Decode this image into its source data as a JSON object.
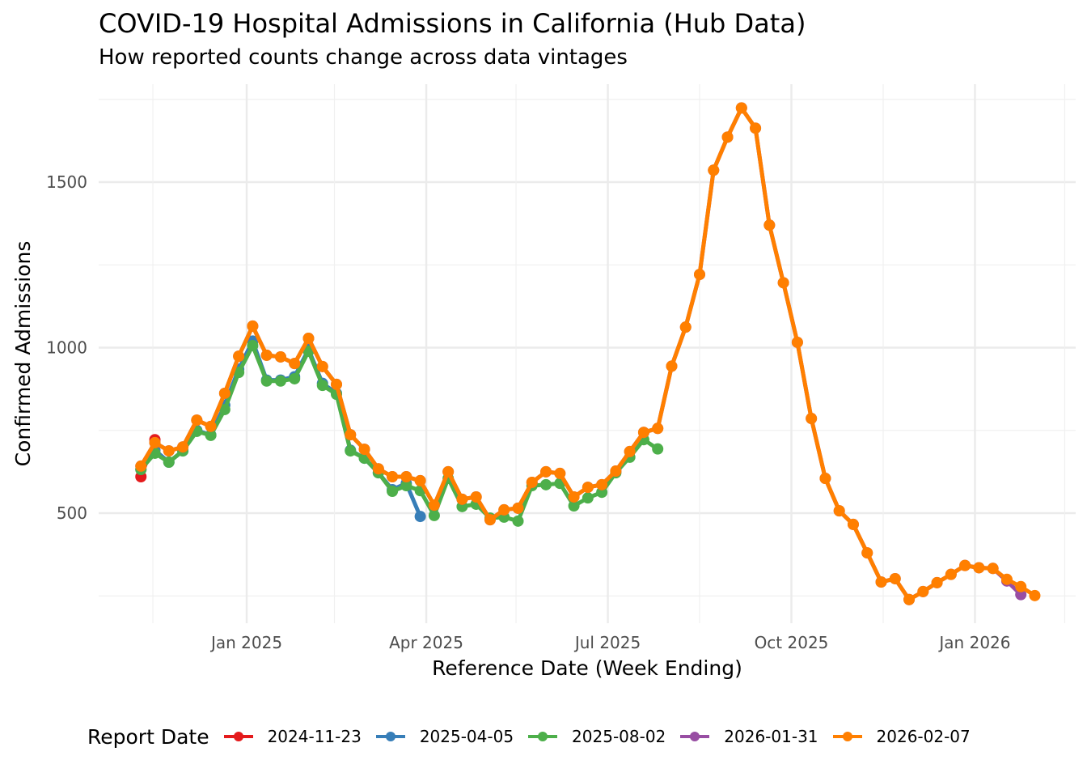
{
  "chart_data": {
    "type": "line",
    "title": "COVID-19 Hospital Admissions in California (Hub Data)",
    "subtitle": "How reported counts change across data vintages",
    "xlabel": "Reference Date (Week Ending)",
    "ylabel": "Confirmed Admissions",
    "x_ticks": [
      "Jan 2025",
      "Apr 2025",
      "Jul 2025",
      "Oct 2025",
      "Jan 2026"
    ],
    "x_tick_dates": [
      "2025-01-01",
      "2025-04-01",
      "2025-07-01",
      "2025-10-01",
      "2026-01-01"
    ],
    "x_minor_dates": [
      "2024-11-15",
      "2025-02-14",
      "2025-05-16",
      "2025-08-16",
      "2025-11-16",
      "2026-02-15"
    ],
    "xlim": [
      "2024-10-28",
      "2026-02-15"
    ],
    "y_ticks": [
      500,
      1000,
      1500
    ],
    "y_minor": [
      250,
      750,
      1250,
      1750
    ],
    "ylim": [
      200,
      1770
    ],
    "grid": true,
    "legend": {
      "title": "Report Date",
      "position": "bottom"
    },
    "series": [
      {
        "name": "2024-11-23",
        "color": "#E41A1C",
        "start": "2024-11-09",
        "values": [
          610,
          722
        ]
      },
      {
        "name": "2025-04-05",
        "color": "#377EB8",
        "start": "2024-11-09",
        "values": [
          632,
          690,
          654,
          688,
          750,
          736,
          826,
          935,
          1020,
          902,
          902,
          912,
          995,
          892,
          862,
          690,
          666,
          622,
          571,
          590,
          490
        ]
      },
      {
        "name": "2025-08-02",
        "color": "#4DAF4A",
        "start": "2024-11-09",
        "values": [
          632,
          681,
          654,
          688,
          747,
          735,
          813,
          925,
          1006,
          899,
          899,
          906,
          989,
          886,
          859,
          688,
          666,
          622,
          566,
          583,
          568,
          493,
          605,
          520,
          527,
          485,
          488,
          476,
          583,
          586,
          590,
          522,
          546,
          563,
          622,
          669,
          722,
          694
        ]
      },
      {
        "name": "2026-01-31",
        "color": "#984EA3",
        "start": "2024-11-09",
        "values": [
          642,
          713,
          688,
          700,
          781,
          762,
          862,
          974,
          1065,
          977,
          972,
          952,
          1028,
          943,
          889,
          737,
          693,
          634,
          610,
          610,
          598,
          524,
          625,
          542,
          549,
          480,
          510,
          515,
          593,
          625,
          620,
          549,
          578,
          586,
          627,
          686,
          744,
          756,
          944,
          1062,
          1221,
          1536,
          1636,
          1724,
          1663,
          1370,
          1196,
          1016,
          786,
          605,
          507,
          466,
          380,
          292,
          302,
          239,
          263,
          290,
          315,
          342,
          335,
          333,
          295,
          254
        ]
      },
      {
        "name": "2026-02-07",
        "color": "#FF7F00",
        "start": "2024-11-09",
        "values": [
          642,
          713,
          688,
          700,
          781,
          762,
          862,
          974,
          1065,
          977,
          972,
          952,
          1028,
          943,
          889,
          737,
          693,
          634,
          610,
          610,
          598,
          524,
          625,
          542,
          549,
          480,
          510,
          515,
          593,
          625,
          620,
          549,
          578,
          586,
          627,
          686,
          744,
          756,
          944,
          1062,
          1221,
          1536,
          1636,
          1724,
          1663,
          1370,
          1196,
          1016,
          786,
          605,
          507,
          466,
          380,
          292,
          302,
          239,
          263,
          290,
          315,
          342,
          335,
          333,
          300,
          278,
          251
        ]
      }
    ]
  }
}
